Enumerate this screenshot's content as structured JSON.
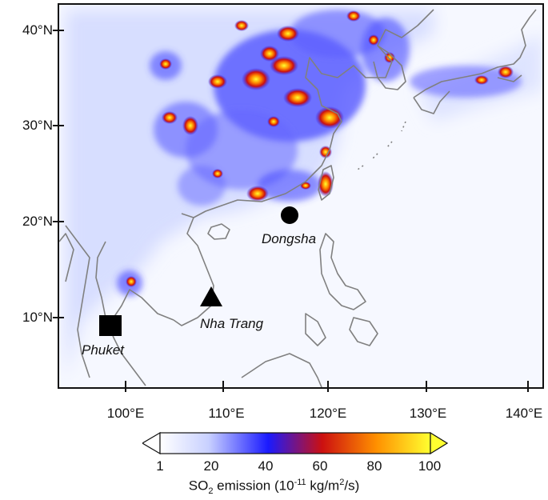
{
  "map": {
    "lat_labels": [
      "40°N",
      "30°N",
      "20°N",
      "10°N"
    ],
    "lon_labels": [
      "100°E",
      "110°E",
      "120°E",
      "130°E",
      "140°E"
    ],
    "sites": [
      {
        "name": "Dongsha",
        "marker": "circle",
        "lat": 20.7,
        "lon": 116.7
      },
      {
        "name": "Nha Trang",
        "marker": "triangle",
        "lat": 12.2,
        "lon": 109.2
      },
      {
        "name": "Phuket",
        "marker": "square",
        "lat": 7.9,
        "lon": 98.4
      }
    ],
    "coastline_color": "#808080"
  },
  "colorbar": {
    "tick_labels": [
      "1",
      "20",
      "40",
      "60",
      "80",
      "100"
    ],
    "title_prefix": "SO",
    "title_sub": "2",
    "title_mid": " emission (10",
    "title_sup": "-11",
    "title_suffix": " kg/m",
    "title_sup2": "2",
    "title_end": "/s)",
    "colors": [
      "#ffffff",
      "#c8d0ff",
      "#1a1aff",
      "#cc1010",
      "#ff9000",
      "#ffff30"
    ]
  }
}
